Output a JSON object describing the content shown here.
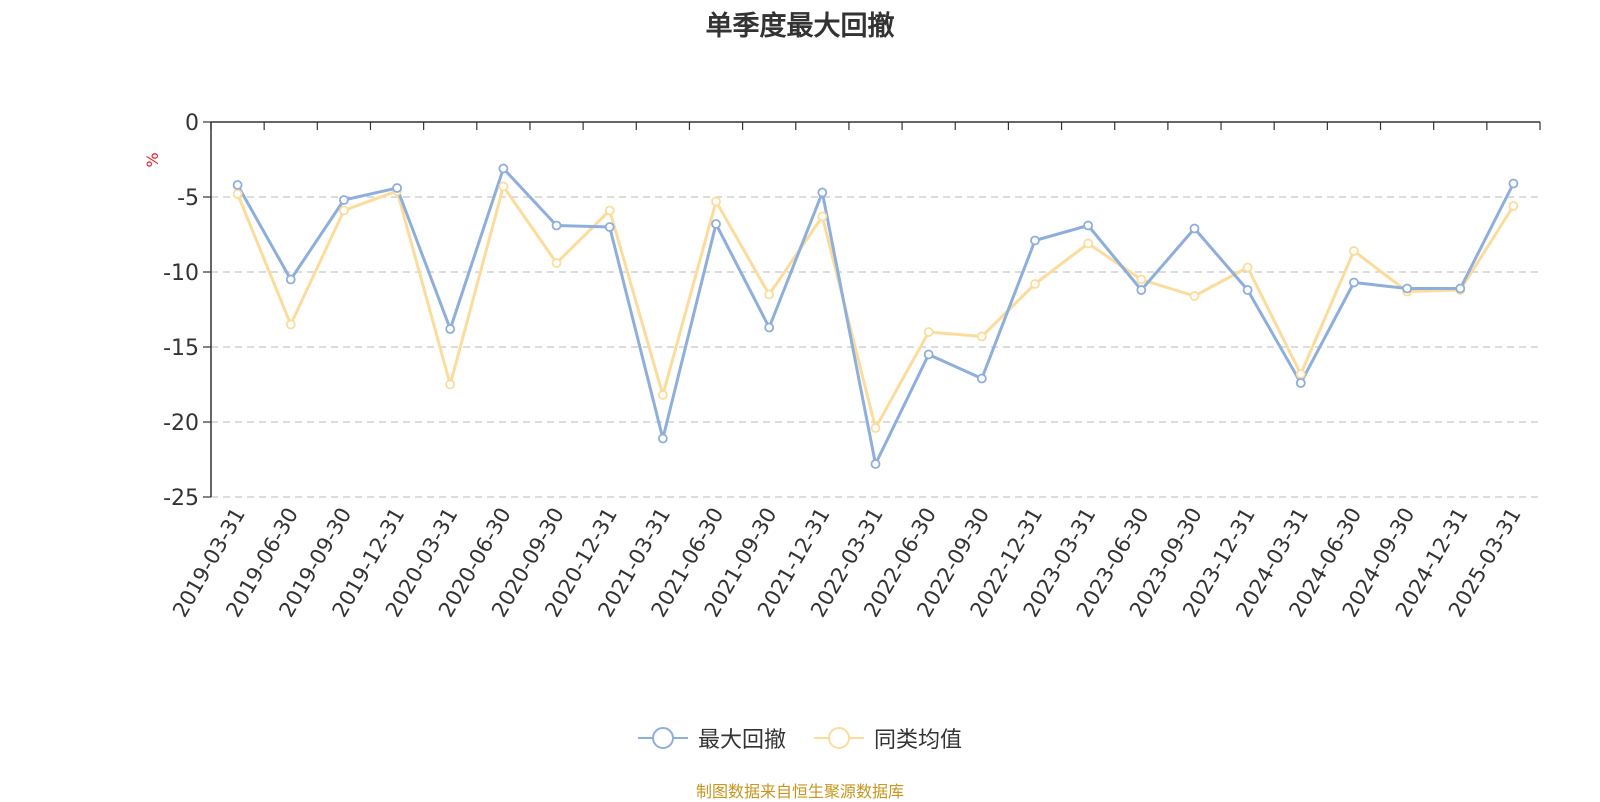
{
  "chart_data": {
    "type": "line",
    "title": "单季度最大回撤",
    "ylabel": "%",
    "xlabel": "",
    "ylim": [
      -25,
      0
    ],
    "yticks": [
      0,
      -5,
      -10,
      -15,
      -20,
      -25
    ],
    "grid": true,
    "legend_position": "bottom",
    "categories": [
      "2019-03-31",
      "2019-06-30",
      "2019-09-30",
      "2019-12-31",
      "2020-03-31",
      "2020-06-30",
      "2020-09-30",
      "2020-12-31",
      "2021-03-31",
      "2021-06-30",
      "2021-09-30",
      "2021-12-31",
      "2022-03-31",
      "2022-06-30",
      "2022-09-30",
      "2022-12-31",
      "2023-03-31",
      "2023-06-30",
      "2023-09-30",
      "2023-12-31",
      "2024-03-31",
      "2024-06-30",
      "2024-09-30",
      "2024-12-31",
      "2025-03-31"
    ],
    "series": [
      {
        "name": "最大回撤",
        "color": "#8eaedc",
        "values": [
          -4.2,
          -10.5,
          -5.2,
          -4.4,
          -13.8,
          -3.1,
          -6.9,
          -7.0,
          -21.1,
          -6.8,
          -13.7,
          -4.7,
          -22.8,
          -15.5,
          -17.1,
          -7.9,
          -6.9,
          -11.2,
          -7.1,
          -11.2,
          -17.4,
          -10.7,
          -11.1,
          -11.1,
          -4.1
        ]
      },
      {
        "name": "同类均值",
        "color": "#fcdc9c",
        "values": [
          -4.8,
          -13.5,
          -5.9,
          -4.6,
          -17.5,
          -4.3,
          -9.4,
          -5.9,
          -18.2,
          -5.3,
          -11.5,
          -6.3,
          -20.4,
          -14.0,
          -14.3,
          -10.8,
          -8.1,
          -10.5,
          -11.6,
          -9.7,
          -16.8,
          -8.6,
          -11.3,
          -11.2,
          -5.6
        ]
      }
    ]
  },
  "source_note": "制图数据来自恒生聚源数据库"
}
